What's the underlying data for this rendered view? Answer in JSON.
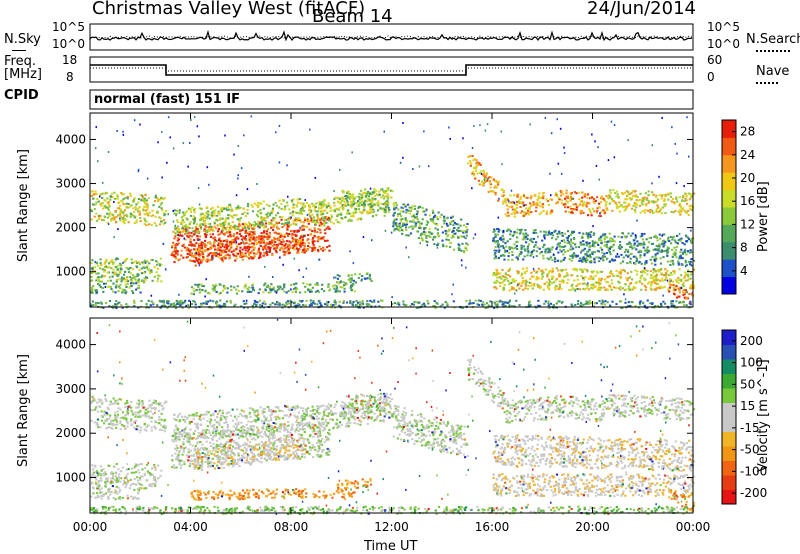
{
  "header": {
    "station": "Christmas Valley West (fitACF)",
    "beam": "Beam 14",
    "date": "24/Jun/2014"
  },
  "status_panels": {
    "nsky_label": "N.Sky",
    "nsky_ticks": [
      "10^5",
      "10^0"
    ],
    "nsearch_label": "N.Search",
    "nsearch_ticks": [
      "10^5",
      "10^0"
    ],
    "freq_label": "Freq.",
    "freq_unit": "[MHz]",
    "freq_ticks": [
      "18",
      "8"
    ],
    "nave_label": "Nave",
    "nave_ticks": [
      "60",
      "0"
    ],
    "cpid_label": "CPID",
    "cpid_value": "normal (fast) 151 IF"
  },
  "colors": {
    "power_scale": [
      "#0000e0",
      "#1e50c8",
      "#3c8c6e",
      "#54a85a",
      "#8cc83c",
      "#c8dc28",
      "#f0c814",
      "#f5961e",
      "#f05a14",
      "#e61e0a"
    ],
    "velocity_scale": [
      "#1e1ec8",
      "#2850b4",
      "#148c64",
      "#3caa32",
      "#78c83c",
      "#c8c8c8",
      "#c8c8c8",
      "#f0b428",
      "#f09614",
      "#f06414",
      "#e63c14",
      "#e61414"
    ]
  },
  "chart_data": [
    {
      "type": "heatmap",
      "title": "Power",
      "xlabel": "",
      "ylabel": "Slant Range [km]",
      "x_ticks": [
        "00:00",
        "04:00",
        "08:00",
        "12:00",
        "16:00",
        "20:00",
        "00:00"
      ],
      "y_ticks": [
        1000,
        2000,
        3000,
        4000
      ],
      "ylim": [
        200,
        4600
      ],
      "colorbar_label": "Power [dB]",
      "colorbar_ticks": [
        4,
        8,
        12,
        16,
        20,
        24,
        28
      ],
      "clim": [
        0,
        30
      ]
    },
    {
      "type": "heatmap",
      "title": "Velocity",
      "xlabel": "Time UT",
      "ylabel": "Slant Range [km]",
      "x_ticks": [
        "00:00",
        "04:00",
        "08:00",
        "12:00",
        "16:00",
        "20:00",
        "00:00"
      ],
      "y_ticks": [
        1000,
        2000,
        3000,
        4000
      ],
      "ylim": [
        200,
        4600
      ],
      "colorbar_label": "Velocity [m s^-1]",
      "colorbar_ticks": [
        200,
        100,
        50,
        15,
        -15,
        -50,
        -100,
        -200
      ]
    }
  ]
}
